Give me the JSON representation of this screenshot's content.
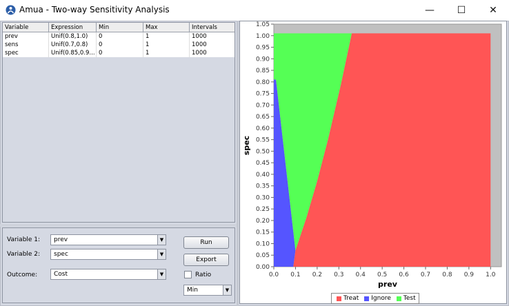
{
  "window": {
    "title": "Amua - Two-way Sensitivity Analysis",
    "minimize_glyph": "—",
    "maximize_glyph": "☐",
    "close_glyph": "✕"
  },
  "table": {
    "columns": [
      "Variable",
      "Expression",
      "Min",
      "Max",
      "Intervals"
    ],
    "rows": [
      [
        "prev",
        "Unif(0.8,1.0)",
        "0",
        "1",
        "1000"
      ],
      [
        "sens",
        "Unif(0.7,0.8)",
        "0",
        "1",
        "1000"
      ],
      [
        "spec",
        "Unif(0.85,0.9...",
        "0",
        "1",
        "1000"
      ]
    ]
  },
  "controls": {
    "variable1_label": "Variable 1:",
    "variable1_value": "prev",
    "variable2_label": "Variable 2:",
    "variable2_value": "spec",
    "outcome_label": "Outcome:",
    "outcome_value": "Cost",
    "run_label": "Run",
    "export_label": "Export",
    "ratio_label": "Ratio",
    "ratio_checked": false,
    "min_value": "Min"
  },
  "chart_data": {
    "type": "area",
    "xlabel": "prev",
    "ylabel": "spec",
    "xlim": [
      0.0,
      1.05
    ],
    "ylim": [
      0.0,
      1.05
    ],
    "x_ticks": [
      "0.0",
      "0.1",
      "0.2",
      "0.3",
      "0.4",
      "0.5",
      "0.6",
      "0.7",
      "0.8",
      "0.9",
      "1.0"
    ],
    "y_ticks": [
      "0.00",
      "0.05",
      "0.10",
      "0.15",
      "0.20",
      "0.25",
      "0.30",
      "0.35",
      "0.40",
      "0.45",
      "0.50",
      "0.55",
      "0.60",
      "0.65",
      "0.70",
      "0.75",
      "0.80",
      "0.85",
      "0.90",
      "0.95",
      "1.00",
      "1.05"
    ],
    "plot_background": "#c0c0c0",
    "legend_position": "bottom",
    "series": [
      {
        "name": "Treat",
        "color": "#ff5555"
      },
      {
        "name": "Ignore",
        "color": "#5555ff"
      },
      {
        "name": "Test",
        "color": "#55ff55"
      }
    ],
    "regions": {
      "Ignore": [
        [
          0.0,
          0.0
        ],
        [
          0.0,
          0.81
        ],
        [
          0.01,
          0.81
        ],
        [
          0.1,
          0.07
        ],
        [
          0.09,
          0.0
        ]
      ],
      "Test": [
        [
          0.0,
          1.01
        ],
        [
          0.36,
          1.01
        ],
        [
          0.31,
          0.79
        ],
        [
          0.25,
          0.55
        ],
        [
          0.2,
          0.37
        ],
        [
          0.15,
          0.21
        ],
        [
          0.1,
          0.07
        ],
        [
          0.01,
          0.81
        ],
        [
          0.0,
          0.81
        ]
      ],
      "Treat": [
        [
          0.36,
          1.01
        ],
        [
          1.0,
          1.01
        ],
        [
          1.0,
          0.0
        ],
        [
          0.09,
          0.0
        ],
        [
          0.1,
          0.07
        ],
        [
          0.15,
          0.21
        ],
        [
          0.2,
          0.37
        ],
        [
          0.25,
          0.55
        ],
        [
          0.31,
          0.79
        ]
      ]
    }
  }
}
